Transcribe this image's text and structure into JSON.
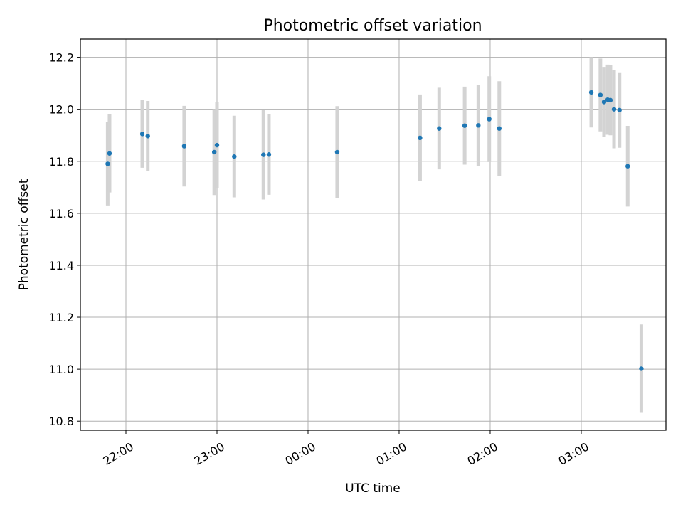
{
  "chart_data": {
    "type": "scatter",
    "title": "Photometric offset variation",
    "xlabel": "UTC time",
    "ylabel": "Photometric offset",
    "grid": true,
    "x_unit": "UTC time (hours after 21:00)",
    "xlim": [
      21.5,
      27.93
    ],
    "ylim": [
      10.765,
      12.27
    ],
    "x_ticks": [
      {
        "value": 22,
        "label": "22:00"
      },
      {
        "value": 23,
        "label": "23:00"
      },
      {
        "value": 24,
        "label": "00:00"
      },
      {
        "value": 25,
        "label": "01:00"
      },
      {
        "value": 26,
        "label": "02:00"
      },
      {
        "value": 27,
        "label": "03:00"
      }
    ],
    "y_ticks": [
      {
        "value": 10.8,
        "label": "10.8"
      },
      {
        "value": 11.0,
        "label": "11.0"
      },
      {
        "value": 11.2,
        "label": "11.2"
      },
      {
        "value": 11.4,
        "label": "11.4"
      },
      {
        "value": 11.6,
        "label": "11.6"
      },
      {
        "value": 11.8,
        "label": "11.8"
      },
      {
        "value": 12.0,
        "label": "12.0"
      },
      {
        "value": 12.2,
        "label": "12.2"
      }
    ],
    "colors": {
      "marker": "#1f77b4",
      "errorbar": "#d3d3d3"
    },
    "points": [
      {
        "x": 21.8,
        "y": 11.79,
        "yerr": 0.16
      },
      {
        "x": 21.82,
        "y": 11.83,
        "yerr": 0.15
      },
      {
        "x": 22.18,
        "y": 11.905,
        "yerr": 0.13
      },
      {
        "x": 22.24,
        "y": 11.897,
        "yerr": 0.135
      },
      {
        "x": 22.64,
        "y": 11.858,
        "yerr": 0.155
      },
      {
        "x": 22.97,
        "y": 11.835,
        "yerr": 0.165
      },
      {
        "x": 23.0,
        "y": 11.862,
        "yerr": 0.165
      },
      {
        "x": 23.19,
        "y": 11.818,
        "yerr": 0.157
      },
      {
        "x": 23.51,
        "y": 11.825,
        "yerr": 0.172
      },
      {
        "x": 23.57,
        "y": 11.826,
        "yerr": 0.155
      },
      {
        "x": 24.32,
        "y": 11.835,
        "yerr": 0.177
      },
      {
        "x": 25.23,
        "y": 11.89,
        "yerr": 0.167
      },
      {
        "x": 25.44,
        "y": 11.926,
        "yerr": 0.157
      },
      {
        "x": 25.72,
        "y": 11.937,
        "yerr": 0.15
      },
      {
        "x": 25.87,
        "y": 11.938,
        "yerr": 0.155
      },
      {
        "x": 25.99,
        "y": 11.962,
        "yerr": 0.165
      },
      {
        "x": 26.1,
        "y": 11.926,
        "yerr": 0.182
      },
      {
        "x": 27.11,
        "y": 12.065,
        "yerr": 0.135
      },
      {
        "x": 27.21,
        "y": 12.055,
        "yerr": 0.14
      },
      {
        "x": 27.25,
        "y": 12.028,
        "yerr": 0.135
      },
      {
        "x": 27.29,
        "y": 12.037,
        "yerr": 0.135
      },
      {
        "x": 27.32,
        "y": 12.035,
        "yerr": 0.135
      },
      {
        "x": 27.36,
        "y": 12.0,
        "yerr": 0.15
      },
      {
        "x": 27.42,
        "y": 11.997,
        "yerr": 0.145
      },
      {
        "x": 27.51,
        "y": 11.781,
        "yerr": 0.155
      },
      {
        "x": 27.66,
        "y": 11.002,
        "yerr": 0.17
      }
    ]
  }
}
